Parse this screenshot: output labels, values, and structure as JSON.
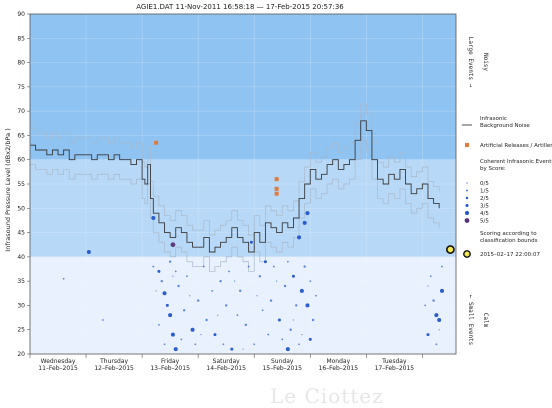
{
  "watermark": "Le Ciottez",
  "chart_data": {
    "type": "line",
    "title": "AGIE1.DAT   11-Nov-2011 16:58:18   —   17-Feb-2015 20:57:36",
    "ylabel": "Infrasound Pressure Level  (dBx2/bPa )",
    "ylim": [
      20,
      90
    ],
    "yticks": [
      20,
      25,
      30,
      35,
      40,
      45,
      50,
      55,
      60,
      65,
      70,
      75,
      80,
      85,
      90
    ],
    "xlim": [
      0,
      7.6
    ],
    "x_tick_labels": [
      {
        "day": "Wednesday",
        "date": "11–Feb–2015"
      },
      {
        "day": "Thursday",
        "date": "12–Feb–2015"
      },
      {
        "day": "Friday",
        "date": "13–Feb–2015"
      },
      {
        "day": "Saturday",
        "date": "14–Feb–2015"
      },
      {
        "day": "Sunday",
        "date": "15–Feb–2015"
      },
      {
        "day": "Monday",
        "date": "16–Feb–2015"
      },
      {
        "day": "Tuesday",
        "date": "17–Feb–2015"
      }
    ],
    "bands": [
      {
        "from": 20,
        "to": 40,
        "color": "#e8f1fd"
      },
      {
        "from": 40,
        "to": 60,
        "color": "#b7d8f7"
      },
      {
        "from": 60,
        "to": 90,
        "color": "#8ec3f2"
      }
    ],
    "side_labels": {
      "upper_1": "Large Events →",
      "upper_2": "Noisy",
      "lower_1": "← Small Events",
      "lower_2": "Calm"
    },
    "legend": {
      "background_noise": "Infrasonic\nBackground Noise",
      "artificial": "Artificial Releases / Artillery",
      "coherent": "Coherent Infrasonic Events,\nby Score:",
      "scores": [
        "0/5",
        "1/5",
        "2/5",
        "3/5",
        "4/5",
        "5/5"
      ],
      "scoring_note": "Scoring according to\nclassification bounds",
      "latest": "2015–02–17 22:00:07"
    },
    "colors": {
      "line": "#3a3a3a",
      "line_light": "#a9b9cc",
      "artificial": "#e07b3a",
      "event": "#2255cc",
      "event5": "#553377",
      "latest": "#f3e84c"
    },
    "background_noise_series": {
      "x": [
        0.0,
        0.1,
        0.2,
        0.3,
        0.4,
        0.5,
        0.6,
        0.7,
        0.8,
        0.9,
        1.0,
        1.1,
        1.2,
        1.3,
        1.4,
        1.5,
        1.6,
        1.7,
        1.8,
        1.9,
        2.0,
        2.05,
        2.1,
        2.15,
        2.2,
        2.3,
        2.4,
        2.5,
        2.6,
        2.7,
        2.8,
        2.9,
        3.0,
        3.1,
        3.2,
        3.3,
        3.4,
        3.5,
        3.6,
        3.7,
        3.8,
        3.9,
        4.0,
        4.1,
        4.2,
        4.3,
        4.4,
        4.5,
        4.6,
        4.7,
        4.8,
        4.9,
        5.0,
        5.1,
        5.2,
        5.3,
        5.4,
        5.5,
        5.6,
        5.7,
        5.8,
        5.9,
        6.0,
        6.1,
        6.2,
        6.3,
        6.4,
        6.5,
        6.6,
        6.7,
        6.8,
        6.9,
        7.0,
        7.1,
        7.2,
        7.3
      ],
      "y": [
        63,
        62,
        62,
        61,
        62,
        61,
        62,
        60,
        61,
        61,
        61,
        60,
        61,
        61,
        60,
        61,
        60,
        60,
        59,
        60,
        56,
        55,
        59,
        52,
        49,
        47,
        45,
        44,
        46,
        45,
        43,
        42,
        42,
        44,
        41,
        42,
        43,
        44,
        46,
        44,
        43,
        41,
        45,
        43,
        47,
        46,
        45,
        47,
        46,
        48,
        52,
        55,
        58,
        56,
        57,
        59,
        60,
        58,
        59,
        60,
        64,
        68,
        66,
        60,
        56,
        55,
        57,
        56,
        58,
        55,
        53,
        54,
        55,
        52,
        51,
        50
      ]
    },
    "artificial_events": [
      {
        "x": 2.25,
        "y": 63.5
      },
      {
        "x": 4.4,
        "y": 56
      },
      {
        "x": 4.4,
        "y": 54
      },
      {
        "x": 4.4,
        "y": 53
      }
    ],
    "coherent_events": [
      {
        "x": 1.05,
        "y": 41,
        "score": 4
      },
      {
        "x": 2.2,
        "y": 48,
        "score": 4
      },
      {
        "x": 2.55,
        "y": 42.5,
        "score": 5
      },
      {
        "x": 2.4,
        "y": 32.5,
        "score": 4
      },
      {
        "x": 2.5,
        "y": 28,
        "score": 4
      },
      {
        "x": 2.55,
        "y": 24,
        "score": 4
      },
      {
        "x": 2.6,
        "y": 21,
        "score": 4
      },
      {
        "x": 2.9,
        "y": 25,
        "score": 4
      },
      {
        "x": 4.9,
        "y": 47,
        "score": 4
      },
      {
        "x": 4.95,
        "y": 49,
        "score": 4
      },
      {
        "x": 4.8,
        "y": 44,
        "score": 4
      },
      {
        "x": 4.85,
        "y": 33,
        "score": 4
      },
      {
        "x": 4.6,
        "y": 21,
        "score": 4
      },
      {
        "x": 4.95,
        "y": 30,
        "score": 4
      },
      {
        "x": 7.25,
        "y": 28,
        "score": 4
      },
      {
        "x": 7.3,
        "y": 27,
        "score": 4
      },
      {
        "x": 7.35,
        "y": 33,
        "score": 4
      },
      {
        "x": 3.95,
        "y": 43,
        "score": 3
      },
      {
        "x": 4.2,
        "y": 39,
        "score": 3
      },
      {
        "x": 2.3,
        "y": 37,
        "score": 3
      },
      {
        "x": 2.45,
        "y": 30,
        "score": 3
      },
      {
        "x": 3.3,
        "y": 24,
        "score": 3
      },
      {
        "x": 3.6,
        "y": 21,
        "score": 3
      },
      {
        "x": 4.45,
        "y": 27,
        "score": 3
      },
      {
        "x": 4.7,
        "y": 36,
        "score": 3
      },
      {
        "x": 5.0,
        "y": 23,
        "score": 3
      },
      {
        "x": 7.1,
        "y": 24,
        "score": 3
      },
      {
        "x": 2.35,
        "y": 35,
        "score": 2
      },
      {
        "x": 2.5,
        "y": 39,
        "score": 2
      },
      {
        "x": 2.65,
        "y": 34,
        "score": 2
      },
      {
        "x": 2.75,
        "y": 29,
        "score": 2
      },
      {
        "x": 3.0,
        "y": 31,
        "score": 2
      },
      {
        "x": 3.15,
        "y": 27,
        "score": 2
      },
      {
        "x": 3.4,
        "y": 35,
        "score": 2
      },
      {
        "x": 3.5,
        "y": 30,
        "score": 2
      },
      {
        "x": 3.75,
        "y": 33,
        "score": 2
      },
      {
        "x": 3.85,
        "y": 26,
        "score": 2
      },
      {
        "x": 4.1,
        "y": 36,
        "score": 2
      },
      {
        "x": 4.3,
        "y": 31,
        "score": 2
      },
      {
        "x": 4.55,
        "y": 34,
        "score": 2
      },
      {
        "x": 4.65,
        "y": 25,
        "score": 2
      },
      {
        "x": 4.75,
        "y": 30,
        "score": 2
      },
      {
        "x": 4.9,
        "y": 38,
        "score": 2
      },
      {
        "x": 5.05,
        "y": 27,
        "score": 2
      },
      {
        "x": 7.2,
        "y": 31,
        "score": 2
      },
      {
        "x": 0.6,
        "y": 35.5,
        "score": 1
      },
      {
        "x": 1.3,
        "y": 27,
        "score": 1
      },
      {
        "x": 2.2,
        "y": 38,
        "score": 1
      },
      {
        "x": 2.3,
        "y": 26,
        "score": 1
      },
      {
        "x": 2.4,
        "y": 22,
        "score": 1
      },
      {
        "x": 2.6,
        "y": 37,
        "score": 1
      },
      {
        "x": 2.7,
        "y": 23,
        "score": 1
      },
      {
        "x": 2.8,
        "y": 36,
        "score": 1
      },
      {
        "x": 2.95,
        "y": 22,
        "score": 1
      },
      {
        "x": 3.1,
        "y": 38,
        "score": 1
      },
      {
        "x": 3.25,
        "y": 33,
        "score": 1
      },
      {
        "x": 3.45,
        "y": 22,
        "score": 1
      },
      {
        "x": 3.55,
        "y": 37,
        "score": 1
      },
      {
        "x": 3.7,
        "y": 28,
        "score": 1
      },
      {
        "x": 3.9,
        "y": 38,
        "score": 1
      },
      {
        "x": 4.0,
        "y": 22,
        "score": 1
      },
      {
        "x": 4.15,
        "y": 29,
        "score": 1
      },
      {
        "x": 4.25,
        "y": 24,
        "score": 1
      },
      {
        "x": 4.35,
        "y": 38,
        "score": 1
      },
      {
        "x": 4.5,
        "y": 23,
        "score": 1
      },
      {
        "x": 4.6,
        "y": 39,
        "score": 1
      },
      {
        "x": 4.8,
        "y": 22,
        "score": 1
      },
      {
        "x": 5.0,
        "y": 35,
        "score": 1
      },
      {
        "x": 5.1,
        "y": 32,
        "score": 1
      },
      {
        "x": 7.05,
        "y": 30,
        "score": 1
      },
      {
        "x": 7.15,
        "y": 36,
        "score": 1
      },
      {
        "x": 7.25,
        "y": 22,
        "score": 1
      },
      {
        "x": 7.35,
        "y": 38,
        "score": 1
      },
      {
        "x": 2.25,
        "y": 33,
        "score": 0
      },
      {
        "x": 2.55,
        "y": 36,
        "score": 0
      },
      {
        "x": 2.85,
        "y": 32,
        "score": 0
      },
      {
        "x": 3.05,
        "y": 24,
        "score": 0
      },
      {
        "x": 3.35,
        "y": 28,
        "score": 0
      },
      {
        "x": 3.65,
        "y": 35,
        "score": 0
      },
      {
        "x": 3.8,
        "y": 21,
        "score": 0
      },
      {
        "x": 4.05,
        "y": 32,
        "score": 0
      },
      {
        "x": 4.4,
        "y": 35,
        "score": 0
      },
      {
        "x": 4.7,
        "y": 27,
        "score": 0
      },
      {
        "x": 4.85,
        "y": 24,
        "score": 0
      },
      {
        "x": 7.1,
        "y": 34,
        "score": 0
      },
      {
        "x": 7.3,
        "y": 25,
        "score": 0
      }
    ],
    "latest_event": {
      "x": 7.5,
      "y": 41.5
    }
  }
}
